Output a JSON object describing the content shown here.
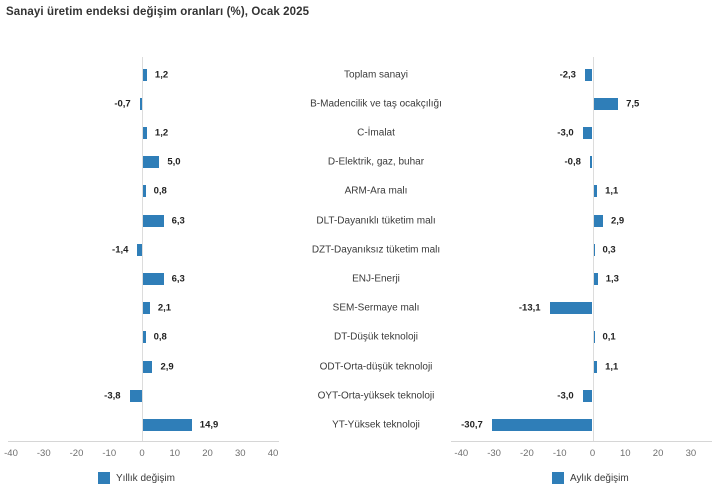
{
  "title": "Sanayi üretim endeksi değişim oranları (%), Ocak 2025",
  "chart_data": {
    "type": "bar",
    "orientation": "horizontal",
    "bar_color": "#2F7EB8",
    "categories": [
      "Toplam sanayi",
      "B-Madencilik ve taş ocakçılığı",
      "C-İmalat",
      "D-Elektrik, gaz, buhar",
      "ARM-Ara malı",
      "DLT-Dayanıklı tüketim malı",
      "DZT-Dayanıksız tüketim malı",
      "ENJ-Enerji",
      "SEM-Sermaye malı",
      "DT-Düşük teknoloji",
      "ODT-Orta-düşük teknoloji",
      "OYT-Orta-yüksek teknoloji",
      "YT-Yüksek teknoloji"
    ],
    "series": [
      {
        "name": "Yıllık değişim",
        "values": [
          1.2,
          -0.7,
          1.2,
          5.0,
          0.8,
          6.3,
          -1.4,
          6.3,
          2.1,
          0.8,
          2.9,
          -3.8,
          14.9
        ],
        "labels": [
          "1,2",
          "-0,7",
          "1,2",
          "5,0",
          "0,8",
          "6,3",
          "-1,4",
          "6,3",
          "2,1",
          "0,8",
          "2,9",
          "-3,8",
          "14,9"
        ],
        "xlim": [
          -40,
          40
        ],
        "ticks": [
          "-40",
          "-30",
          "-20",
          "-10",
          "0",
          "10",
          "20",
          "30",
          "40"
        ]
      },
      {
        "name": "Aylık değişim",
        "values": [
          -2.3,
          7.5,
          -3.0,
          -0.8,
          1.1,
          2.9,
          0.3,
          1.3,
          -13.1,
          0.1,
          1.1,
          -3.0,
          -30.7
        ],
        "labels": [
          "-2,3",
          "7,5",
          "-3,0",
          "-0,8",
          "1,1",
          "2,9",
          "0,3",
          "1,3",
          "-13,1",
          "0,1",
          "1,1",
          "-3,0",
          "-30,7"
        ],
        "xlim": [
          -40,
          30
        ],
        "ticks": [
          "-40",
          "-30",
          "-20",
          "-10",
          "0",
          "10",
          "20",
          "30"
        ]
      }
    ],
    "legend_position": "bottom",
    "grid": false
  }
}
